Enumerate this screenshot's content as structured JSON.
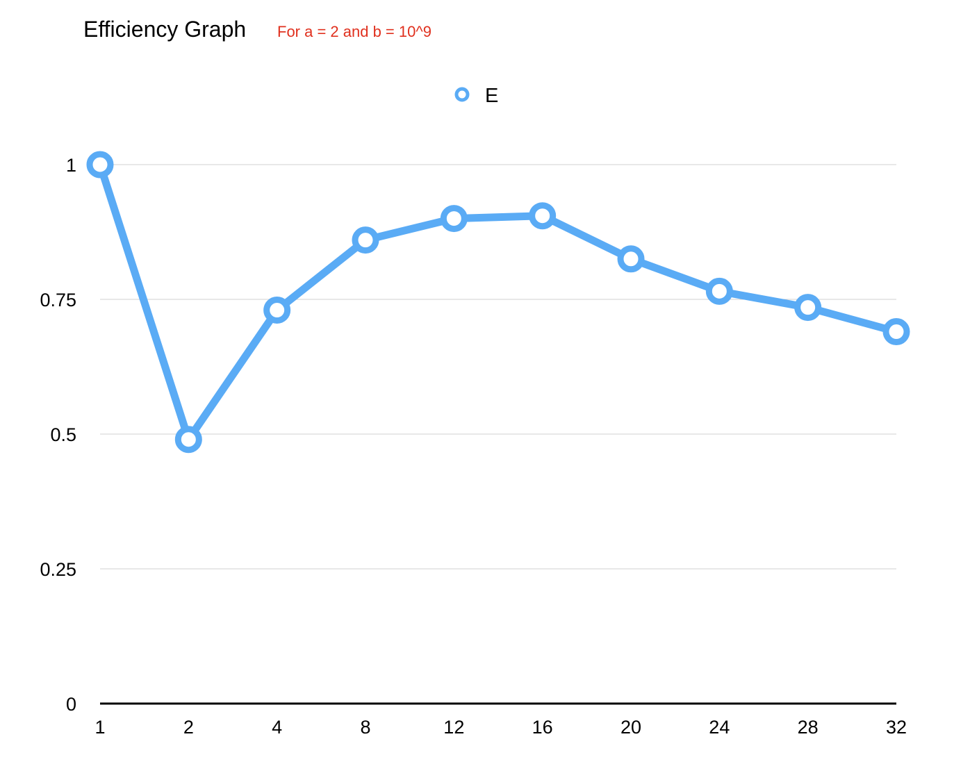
{
  "chart_data": {
    "type": "line",
    "title": "Efficiency Graph",
    "subtitle": "For a = 2 and b = 10^9",
    "categories": [
      "1",
      "2",
      "4",
      "8",
      "12",
      "16",
      "20",
      "24",
      "28",
      "32"
    ],
    "series": [
      {
        "name": "E",
        "values": [
          1.0,
          0.49,
          0.73,
          0.86,
          0.9,
          0.905,
          0.825,
          0.765,
          0.735,
          0.69
        ]
      }
    ],
    "ylim": [
      0,
      1
    ],
    "yticks": [
      "0",
      "0.25",
      "0.5",
      "0.75",
      "1"
    ],
    "ytick_values": [
      0,
      0.25,
      0.5,
      0.75,
      1
    ],
    "xlabel": "",
    "ylabel": "",
    "legend": "top-center",
    "grid": true,
    "colors": {
      "series": "#5aabf5",
      "subtitle": "#e0301e",
      "grid": "#d0d0d0",
      "axis": "#000000"
    }
  }
}
